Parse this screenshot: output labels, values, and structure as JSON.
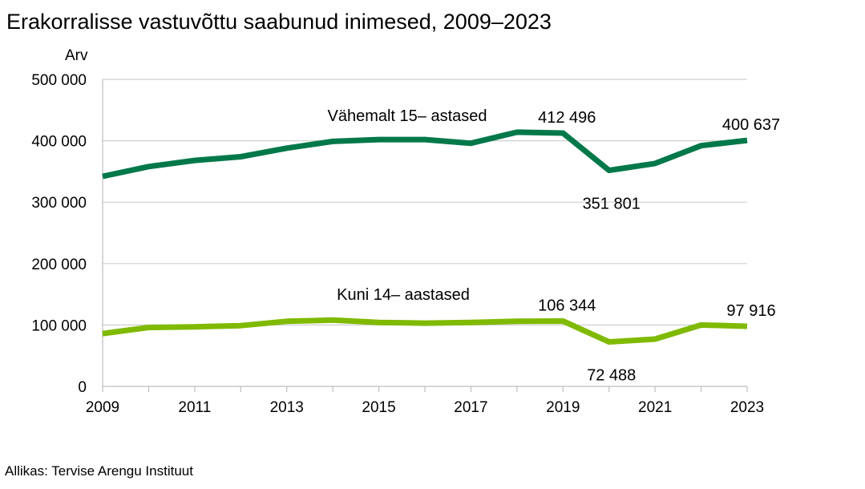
{
  "chart_data": {
    "type": "line",
    "title": "Erakorralisse vastuvõttu saabunud inimesed, 2009–2023",
    "source": "Allikas: Tervise Arengu Instituut",
    "ylabel": "Arv",
    "xlabel": "",
    "ylim": [
      0,
      500000
    ],
    "xlim": [
      2009,
      2023
    ],
    "y_ticks": [
      0,
      100000,
      200000,
      300000,
      400000,
      500000
    ],
    "y_tick_labels": [
      "0",
      "100 000",
      "200 000",
      "300 000",
      "400 000",
      "500 000"
    ],
    "x_ticks": [
      2009,
      2011,
      2013,
      2015,
      2017,
      2019,
      2021,
      2023
    ],
    "x_tick_labels": [
      "2009",
      "2011",
      "2013",
      "2015",
      "2017",
      "2019",
      "2021",
      "2023"
    ],
    "grid": true,
    "x": [
      2009,
      2010,
      2011,
      2012,
      2013,
      2014,
      2015,
      2016,
      2017,
      2018,
      2019,
      2020,
      2021,
      2022,
      2023
    ],
    "series": [
      {
        "name": "Vähemalt 15– astased",
        "color": "#00784a",
        "values": [
          342000,
          358000,
          368000,
          374000,
          388000,
          399000,
          402000,
          402000,
          396000,
          414000,
          412496,
          351801,
          363000,
          392000,
          400637
        ],
        "point_labels": [
          {
            "x": 2019,
            "text": "412 496"
          },
          {
            "x": 2020,
            "text": "351 801"
          },
          {
            "x": 2023,
            "text": "400 637"
          }
        ]
      },
      {
        "name": "Kuni 14– aastased",
        "color": "#7fba00",
        "values": [
          86000,
          96000,
          97000,
          99000,
          106000,
          108000,
          104000,
          103000,
          104000,
          106000,
          106344,
          72488,
          77000,
          100000,
          97916
        ],
        "point_labels": [
          {
            "x": 2019,
            "text": "106 344"
          },
          {
            "x": 2020,
            "text": "72 488"
          },
          {
            "x": 2023,
            "text": "97 916"
          }
        ]
      }
    ]
  }
}
